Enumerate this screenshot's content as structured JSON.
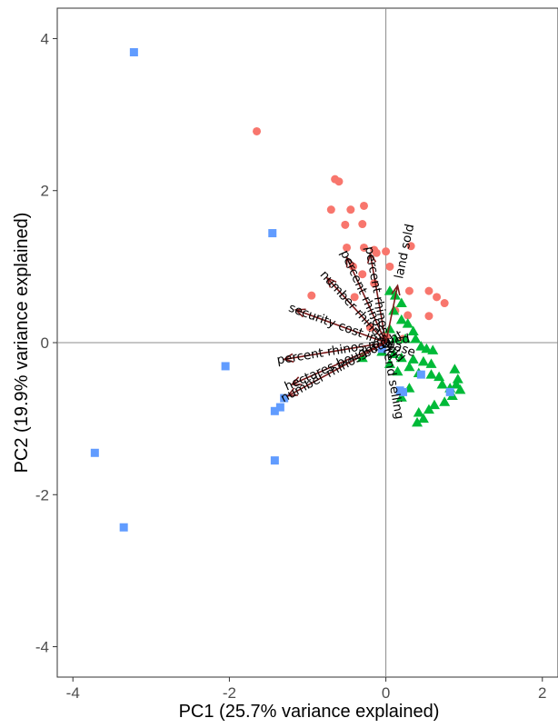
{
  "chart_data": {
    "type": "scatter",
    "title": "",
    "xlabel": "PC1 (25.7% variance explained)",
    "ylabel": "PC2 (19.9% variance explained)",
    "xlim": [
      -4.2,
      2.2
    ],
    "ylim": [
      -4.4,
      4.4
    ],
    "x_ticks": [
      {
        "value": -4,
        "label": "-4"
      },
      {
        "value": -2,
        "label": "-2"
      },
      {
        "value": 0,
        "label": "0"
      },
      {
        "value": 2,
        "label": "2"
      }
    ],
    "y_ticks": [
      {
        "value": 4,
        "label": "4"
      },
      {
        "value": 2,
        "label": "2"
      },
      {
        "value": 0,
        "label": "0"
      },
      {
        "value": -2,
        "label": "-2"
      },
      {
        "value": -4,
        "label": "-4"
      }
    ],
    "grid": false,
    "zero_lines": true,
    "series": [
      {
        "color": "#F8766D",
        "marker": "circle",
        "points": [
          [
            -1.65,
            2.78
          ],
          [
            -0.65,
            2.15
          ],
          [
            -0.6,
            2.12
          ],
          [
            -0.7,
            1.75
          ],
          [
            -0.45,
            1.75
          ],
          [
            -0.28,
            1.8
          ],
          [
            -0.52,
            1.55
          ],
          [
            -0.3,
            1.56
          ],
          [
            -0.5,
            1.25
          ],
          [
            -0.28,
            1.25
          ],
          [
            -0.15,
            1.22
          ],
          [
            -0.12,
            1.18
          ],
          [
            0.0,
            1.2
          ],
          [
            0.32,
            1.27
          ],
          [
            -0.42,
            1.0
          ],
          [
            0.05,
            1.0
          ],
          [
            -0.3,
            0.9
          ],
          [
            -0.15,
            0.78
          ],
          [
            -0.4,
            0.6
          ],
          [
            0.3,
            0.68
          ],
          [
            0.55,
            0.68
          ],
          [
            0.65,
            0.6
          ],
          [
            0.75,
            0.52
          ],
          [
            0.12,
            0.42
          ],
          [
            0.28,
            0.36
          ],
          [
            0.55,
            0.35
          ],
          [
            -0.95,
            0.62
          ],
          [
            -0.2,
            0.2
          ],
          [
            0.0,
            0.08
          ],
          [
            0.22,
            0.05
          ]
        ]
      },
      {
        "color": "#00BA38",
        "marker": "triangle",
        "points": [
          [
            0.05,
            0.68
          ],
          [
            0.12,
            0.62
          ],
          [
            0.2,
            0.52
          ],
          [
            0.1,
            0.42
          ],
          [
            0.2,
            0.3
          ],
          [
            0.28,
            0.25
          ],
          [
            0.35,
            0.15
          ],
          [
            0.05,
            0.18
          ],
          [
            0.12,
            0.05
          ],
          [
            0.25,
            0.05
          ],
          [
            0.38,
            0.05
          ],
          [
            0.45,
            -0.05
          ],
          [
            0.52,
            -0.08
          ],
          [
            0.6,
            -0.1
          ],
          [
            -0.05,
            -0.12
          ],
          [
            0.1,
            -0.15
          ],
          [
            0.2,
            -0.2
          ],
          [
            0.35,
            -0.22
          ],
          [
            0.48,
            -0.25
          ],
          [
            0.58,
            -0.28
          ],
          [
            -0.3,
            -0.2
          ],
          [
            0.05,
            -0.28
          ],
          [
            0.15,
            -0.38
          ],
          [
            0.3,
            -0.32
          ],
          [
            0.42,
            -0.4
          ],
          [
            0.58,
            -0.42
          ],
          [
            0.68,
            -0.45
          ],
          [
            0.88,
            -0.35
          ],
          [
            0.72,
            -0.55
          ],
          [
            0.82,
            -0.6
          ],
          [
            0.9,
            -0.55
          ],
          [
            0.95,
            -0.62
          ],
          [
            0.85,
            -0.7
          ],
          [
            0.75,
            -0.78
          ],
          [
            0.62,
            -0.82
          ],
          [
            0.55,
            -0.88
          ],
          [
            0.3,
            -0.6
          ],
          [
            0.2,
            -0.72
          ],
          [
            0.42,
            -0.92
          ],
          [
            0.48,
            -1.0
          ],
          [
            0.4,
            -1.05
          ],
          [
            0.92,
            -0.48
          ]
        ]
      },
      {
        "color": "#619CFF",
        "marker": "square",
        "points": [
          [
            -3.22,
            3.82
          ],
          [
            -1.45,
            1.44
          ],
          [
            -2.05,
            -0.31
          ],
          [
            -1.3,
            -0.73
          ],
          [
            -1.35,
            -0.85
          ],
          [
            -1.42,
            -0.9
          ],
          [
            -1.42,
            -1.55
          ],
          [
            -3.72,
            -1.45
          ],
          [
            -3.35,
            -2.43
          ],
          [
            -0.05,
            -0.08
          ],
          [
            0.45,
            -0.42
          ],
          [
            0.18,
            -0.63
          ],
          [
            0.22,
            -0.65
          ],
          [
            0.82,
            -0.65
          ]
        ]
      }
    ],
    "vectors": [
      {
        "label": "percent rhinos intend selling",
        "x": -0.2,
        "y": 1.17
      },
      {
        "label": "percent rhinos sold",
        "x": -0.5,
        "y": 1.12
      },
      {
        "label": "number rhinos sold",
        "x": -0.75,
        "y": 0.85
      },
      {
        "label": "security cost increase",
        "x": -1.15,
        "y": 0.43
      },
      {
        "label": "percent rhinos moved",
        "x": -1.3,
        "y": -0.22
      },
      {
        "label": "hectares bought",
        "x": -1.2,
        "y": -0.55
      },
      {
        "label": "number rhinos bought",
        "x": -1.25,
        "y": -0.7
      },
      {
        "label": "land sold",
        "x": 0.15,
        "y": 0.75
      }
    ],
    "vector_color": "#7B1A1A"
  }
}
